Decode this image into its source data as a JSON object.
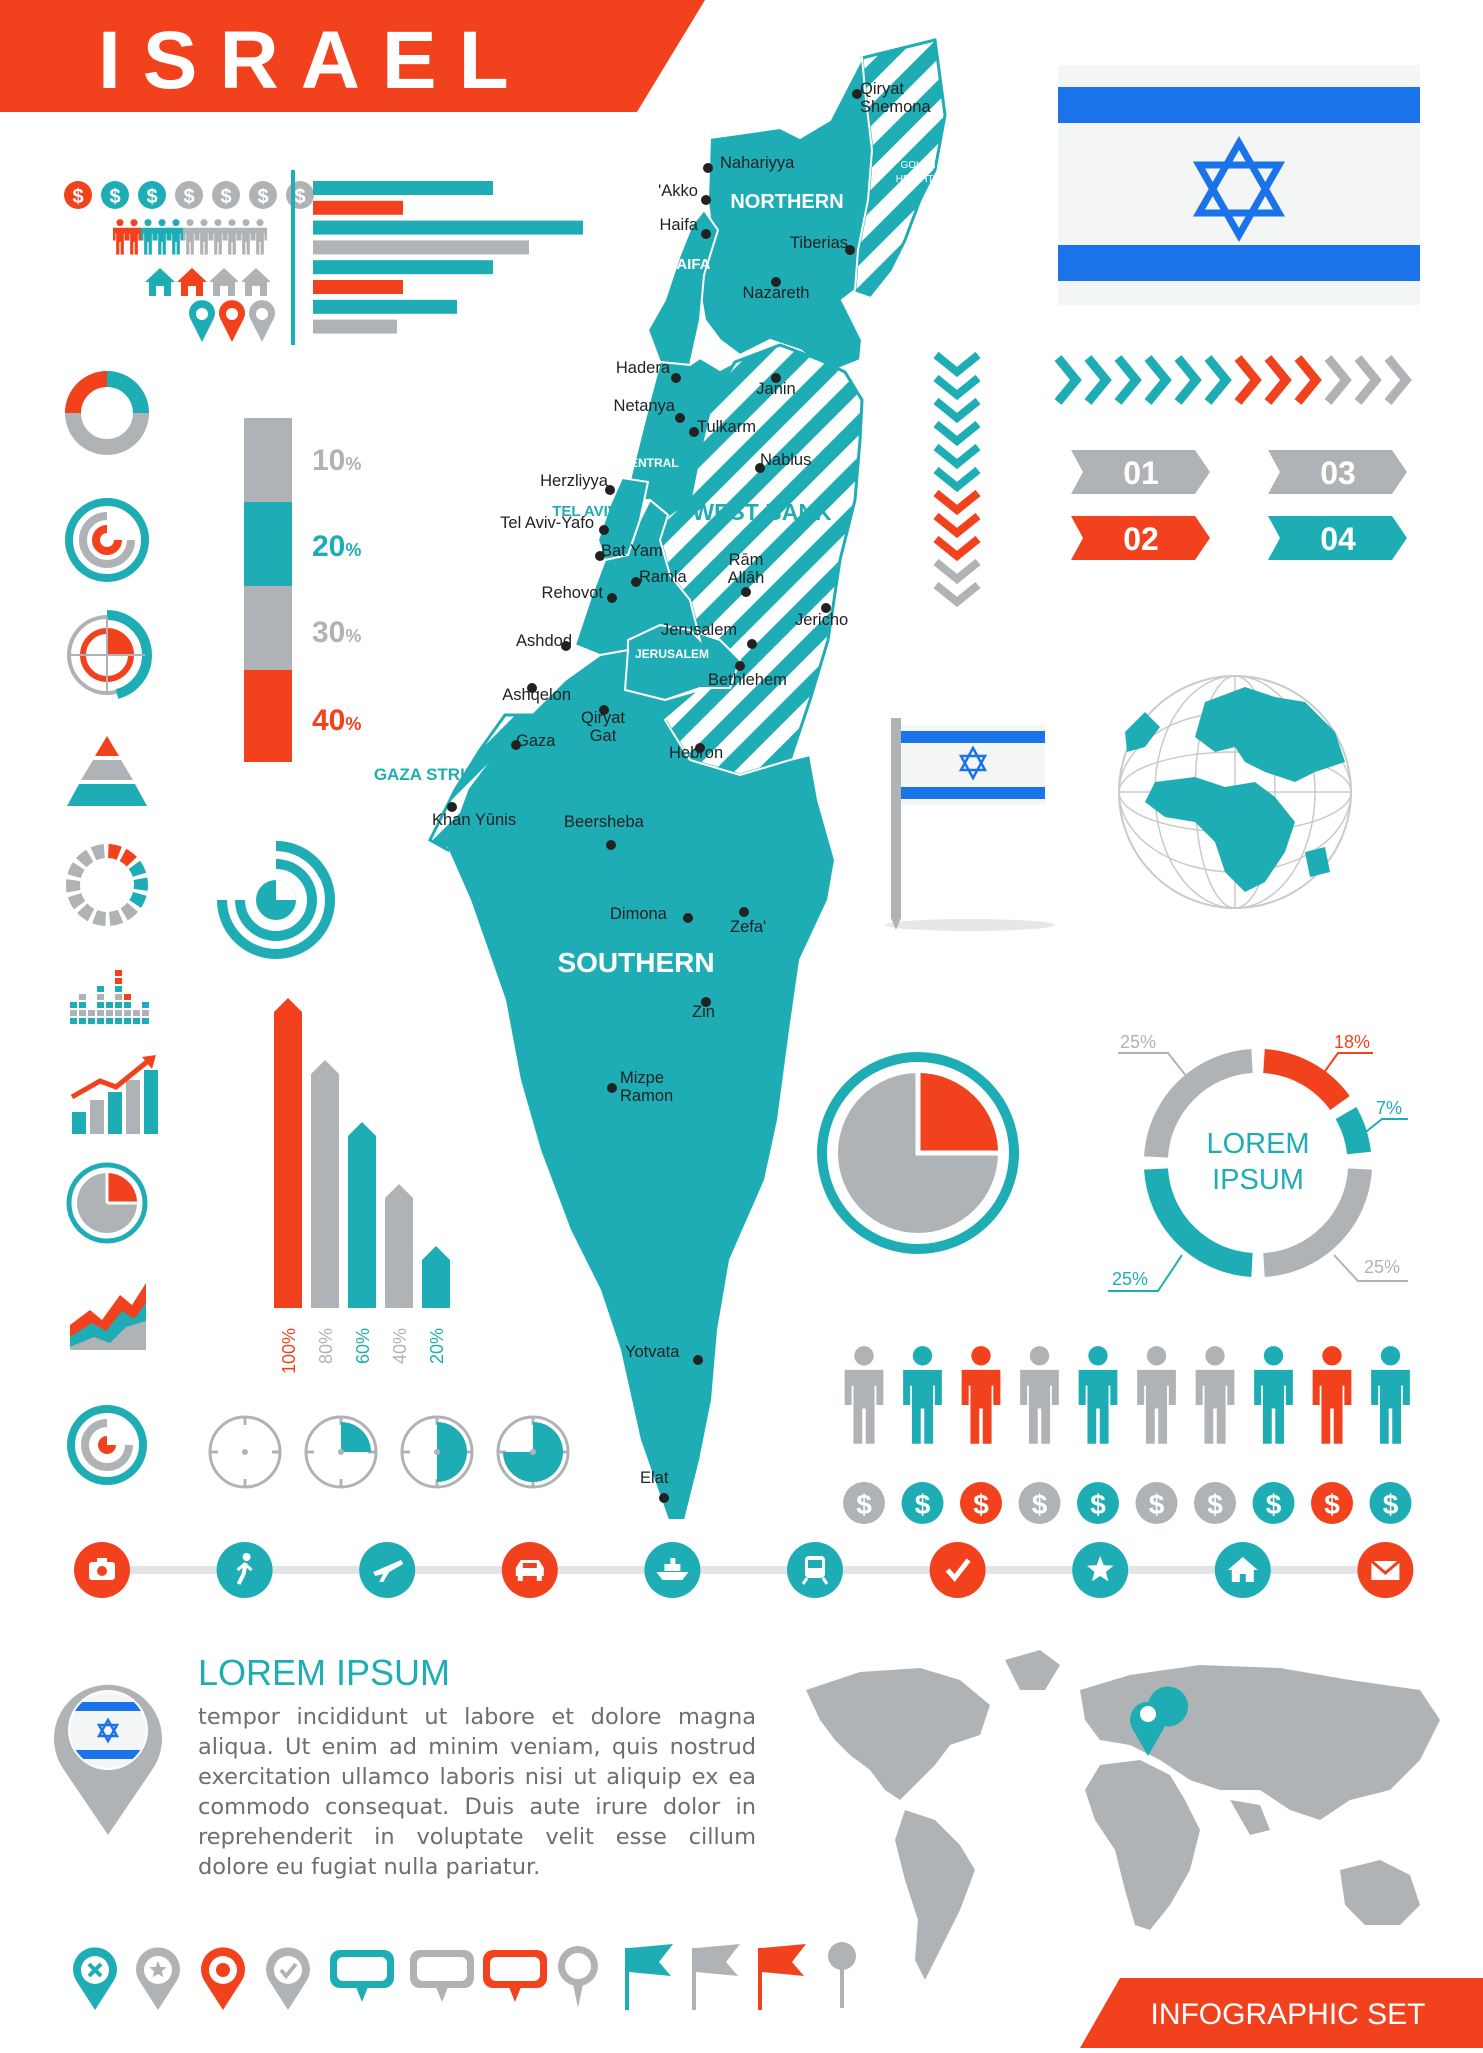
{
  "colors": {
    "teal": "#1fadb5",
    "orange": "#f2421d",
    "gray": "#b0b3b6",
    "darkgray": "#8c8f92",
    "blue": "#1a73e8",
    "white": "#ffffff"
  },
  "title": "ISRAEL",
  "footer_label": "INFOGRAPHIC SET",
  "map": {
    "regions": [
      {
        "id": "northern",
        "label": "NORTHERN"
      },
      {
        "id": "haifa",
        "label": "HAIFA"
      },
      {
        "id": "central",
        "label": "CENTRAL"
      },
      {
        "id": "tel-aviv",
        "label": "TEL AVIV"
      },
      {
        "id": "jerusalem",
        "label": "JERUSALEM"
      },
      {
        "id": "southern",
        "label": "SOUTHERN"
      },
      {
        "id": "west-bank",
        "label": "WEST BANK"
      },
      {
        "id": "gaza-strip",
        "label": "GAZA STRIP"
      },
      {
        "id": "golan-heights",
        "label": "GOLAN HEIGHTS"
      }
    ],
    "cities": [
      {
        "label": "Qiryat",
        "label2": "Shemona"
      },
      {
        "label": "Nahariyya"
      },
      {
        "label": "'Akko"
      },
      {
        "label": "Haifa"
      },
      {
        "label": "Tiberias"
      },
      {
        "label": "Nazareth"
      },
      {
        "label": "Hadera"
      },
      {
        "label": "Janin"
      },
      {
        "label": "Netanya"
      },
      {
        "label": "Tulkarm"
      },
      {
        "label": "Nablus"
      },
      {
        "label": "Herzliyya"
      },
      {
        "label": "Tel Aviv-Yafo"
      },
      {
        "label": "Bat Yam"
      },
      {
        "label": "Ramla"
      },
      {
        "label": "Rām",
        "label2": "Allāh"
      },
      {
        "label": "Rehovot"
      },
      {
        "label": "Jericho"
      },
      {
        "label": "Jerusalem"
      },
      {
        "label": "Ashdod"
      },
      {
        "label": "Bethlehem"
      },
      {
        "label": "Ashqelon"
      },
      {
        "label": "Qiryat",
        "label2": "Gat"
      },
      {
        "label": "Gaza"
      },
      {
        "label": "Hebron"
      },
      {
        "label": "Khan Yūnis"
      },
      {
        "label": "Beersheba"
      },
      {
        "label": "Dimona"
      },
      {
        "label": "Zefa'"
      },
      {
        "label": "Zin"
      },
      {
        "label": "Mizpe",
        "label2": "Ramon"
      },
      {
        "label": "Yotvata"
      },
      {
        "label": "Elat"
      }
    ]
  },
  "percent_column": [
    {
      "label": "10",
      "unit": "%"
    },
    {
      "label": "20",
      "unit": "%"
    },
    {
      "label": "30",
      "unit": "%"
    },
    {
      "label": "40",
      "unit": "%"
    }
  ],
  "bar_chart": {
    "bars": [
      {
        "label": "100%",
        "value": 100
      },
      {
        "label": "80%",
        "value": 80
      },
      {
        "label": "60%",
        "value": 60
      },
      {
        "label": "40%",
        "value": 40
      },
      {
        "label": "20%",
        "value": 20
      }
    ]
  },
  "hbars": [
    0.6,
    0.3,
    0.9,
    0.72,
    0.6,
    0.3,
    0.48,
    0.28
  ],
  "numbered_tags": [
    {
      "label": "01"
    },
    {
      "label": "03"
    },
    {
      "label": "02"
    },
    {
      "label": "04"
    }
  ],
  "donut": {
    "center_line1": "LOREM",
    "center_line2": "IPSUM",
    "labels": [
      {
        "label": "18%"
      },
      {
        "label": "7%"
      },
      {
        "label": "25%"
      },
      {
        "label": "25%"
      },
      {
        "label": "25%"
      }
    ]
  },
  "people_row": [
    "gray",
    "teal",
    "orange",
    "gray",
    "teal",
    "gray",
    "gray",
    "teal",
    "orange",
    "teal"
  ],
  "dollar_symbol": "$",
  "timeline_icons": [
    "camera-icon",
    "walking-icon",
    "airplane-icon",
    "car-icon",
    "ship-icon",
    "train-icon",
    "check-icon",
    "star-icon",
    "house-icon",
    "envelope-icon"
  ],
  "text_block": {
    "heading": "LOREM IPSUM",
    "body": "tempor incididunt ut labore et dolore magna aliqua. Ut enim ad minim veniam, quis nostrud exercitation ullamco laboris nisi ut aliquip ex ea commodo consequat. Duis aute irure dolor in reprehenderit in voluptate velit esse cillum dolore eu fugiat nulla pariatur."
  }
}
